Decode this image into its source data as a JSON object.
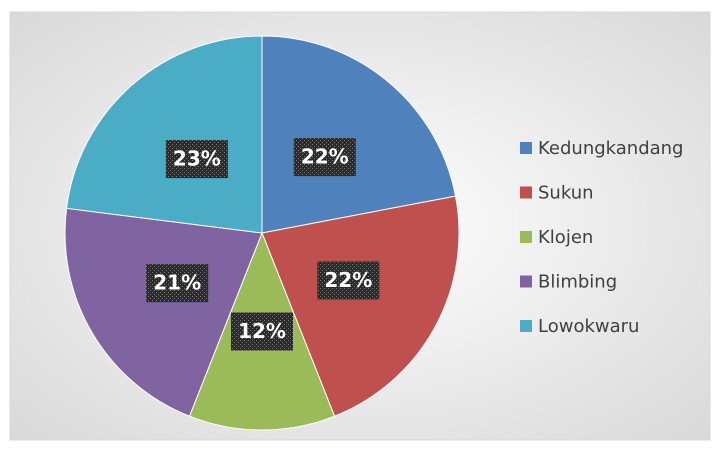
{
  "chart_data": {
    "type": "pie",
    "categories": [
      "Kedungkandang",
      "Sukun",
      "Klojen",
      "Blimbing",
      "Lowokwaru"
    ],
    "values": [
      22,
      22,
      12,
      21,
      23
    ],
    "value_labels": [
      "22%",
      "22%",
      "12%",
      "21%",
      "23%"
    ],
    "colors": [
      "#4f81bd",
      "#c0504d",
      "#9bbb59",
      "#8064a2",
      "#4bacc6"
    ],
    "legend": "right"
  }
}
